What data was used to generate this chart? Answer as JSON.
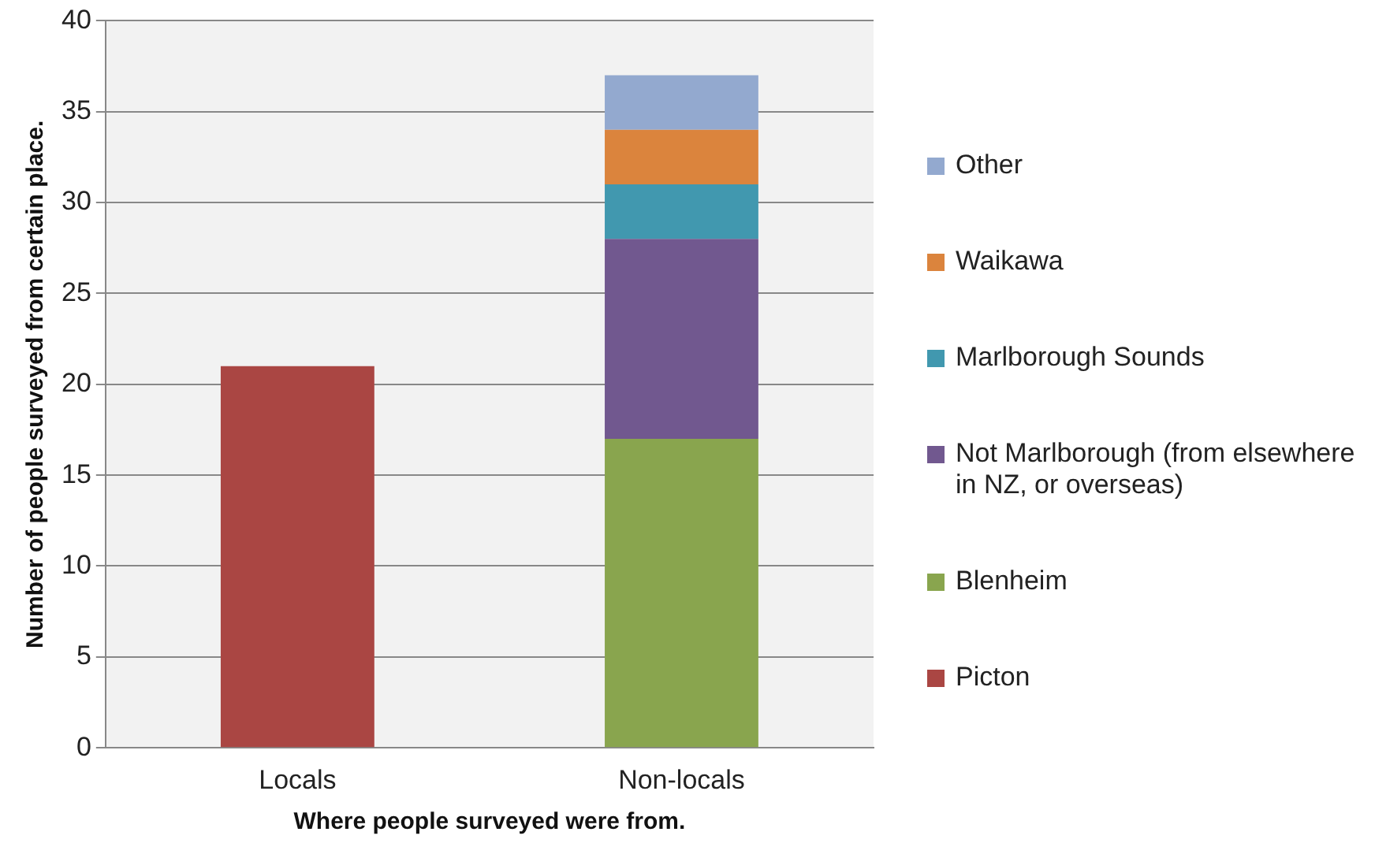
{
  "chart_data": {
    "type": "bar",
    "stacked": true,
    "xlabel": "Where people surveyed were from.",
    "ylabel": "Number of people surveyed from certain place.",
    "categories": [
      "Locals",
      "Non-locals"
    ],
    "series": [
      {
        "name": "Picton",
        "color": "#aa4643",
        "values": [
          21,
          null
        ]
      },
      {
        "name": "Blenheim",
        "color": "#89a54e",
        "values": [
          null,
          17
        ]
      },
      {
        "name": "Not Marlborough (from elsewhere in NZ, or overseas)",
        "color": "#71588f",
        "values": [
          null,
          11
        ]
      },
      {
        "name": "Marlborough Sounds",
        "color": "#4198af",
        "values": [
          null,
          3
        ]
      },
      {
        "name": "Waikawa",
        "color": "#db843d",
        "values": [
          null,
          3
        ]
      },
      {
        "name": "Other",
        "color": "#93a9cf",
        "values": [
          null,
          3
        ]
      }
    ],
    "ylim": [
      0,
      40
    ],
    "yticks": [
      0,
      5,
      10,
      15,
      20,
      25,
      30,
      35,
      40
    ],
    "grid": "y",
    "legend": "right"
  }
}
